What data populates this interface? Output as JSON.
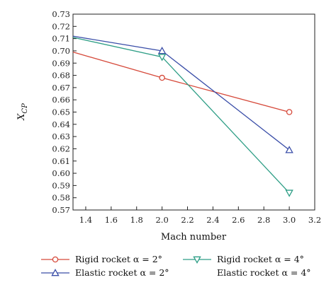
{
  "chart_data": {
    "type": "line",
    "xlabel": "Mach number",
    "ylabel_main": "X",
    "ylabel_sub": "CP",
    "xlim": [
      1.3,
      3.2
    ],
    "ylim": [
      0.57,
      0.73
    ],
    "x_ticks": [
      "1.4",
      "1.6",
      "1.8",
      "2.0",
      "2.2",
      "2.4",
      "2.6",
      "2.8",
      "3.0",
      "3.2"
    ],
    "y_ticks": [
      "0.57",
      "0.58",
      "0.59",
      "0.60",
      "0.61",
      "0.62",
      "0.63",
      "0.64",
      "0.65",
      "0.66",
      "0.67",
      "0.68",
      "0.69",
      "0.70",
      "0.71",
      "0.72",
      "0.73"
    ],
    "grid": false,
    "legend_position": "bottom",
    "series": [
      {
        "name": "Rigid rocket α = 2°",
        "color": "#d64a3b",
        "marker": "circle",
        "x": [
          1.3,
          2.0,
          3.0
        ],
        "y": [
          0.699,
          0.678,
          0.65
        ],
        "marker_points": [
          false,
          true,
          true
        ]
      },
      {
        "name": "Elastic rocket α = 2°",
        "color": "#3a4ea8",
        "marker": "triangle-up",
        "x": [
          1.3,
          2.0,
          3.0
        ],
        "y": [
          0.712,
          0.7,
          0.619
        ],
        "marker_points": [
          false,
          true,
          true
        ]
      },
      {
        "name": "Rigid rocket α = 4°",
        "color": "#2e9e86",
        "marker": "triangle-down",
        "x": [
          1.3,
          2.0,
          3.0
        ],
        "y": [
          0.711,
          0.695,
          0.584
        ],
        "marker_points": [
          false,
          true,
          true
        ]
      },
      {
        "name": "Elastic rocket α = 4°",
        "color": "#ffffff",
        "marker": "none",
        "x": [],
        "y": [],
        "marker_points": []
      }
    ]
  }
}
